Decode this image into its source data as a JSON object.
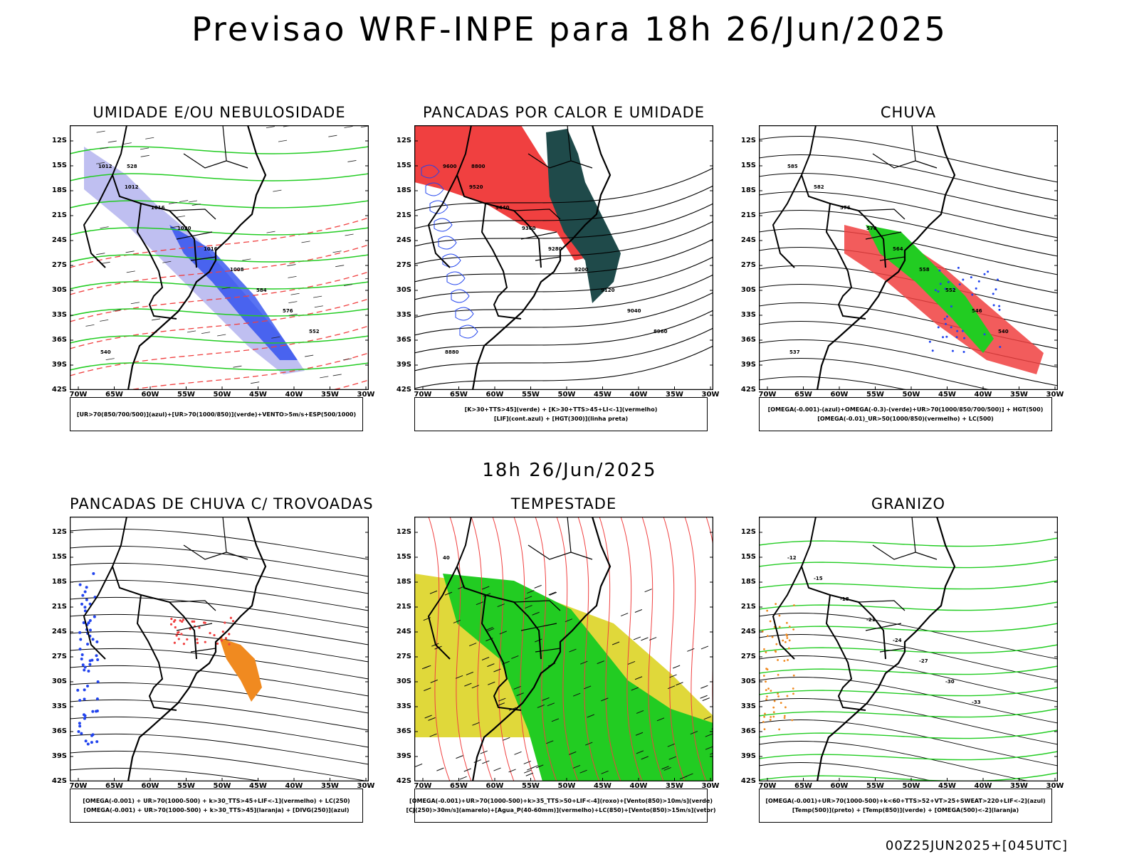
{
  "page": {
    "title": "Previsao WRF-INPE  para 18h 26/Jun/2025",
    "mid_date": "18h 26/Jun/2025",
    "footer": "00Z25JUN2025+[045UTC]"
  },
  "axes": {
    "lat_labels": [
      "12S",
      "15S",
      "18S",
      "21S",
      "24S",
      "27S",
      "30S",
      "33S",
      "36S",
      "39S",
      "42S"
    ],
    "lon_labels": [
      "70W",
      "65W",
      "60W",
      "55W",
      "50W",
      "45W",
      "40W",
      "35W",
      "30W"
    ]
  },
  "colors": {
    "red": "#f04040",
    "green": "#22cc22",
    "blue": "#2244ee",
    "lightblue": "#b8b8f0",
    "darkteal": "#1f4a4a",
    "yellow": "#e0d83a",
    "orange": "#f08a20",
    "black": "#000000"
  },
  "panels": [
    {
      "title": "UMIDADE E/OU NEBULOSIDADE",
      "legend_line1": "[UR>70(850/700/500)](azul)+[UR>70(1000/850)](verde)+VENTO>5m/s+ESP(500/1000)",
      "legend_line2": "",
      "contour_labels": [
        "1012",
        "1012",
        "1016",
        "1020",
        "1016",
        "1008",
        "584",
        "576",
        "552",
        "540",
        "528"
      ]
    },
    {
      "title": "PANCADAS POR CALOR E UMIDADE",
      "legend_line1": "[K>30+TTS>45](verde) + [K>30+TTS>45+LI<-1](vermelho)",
      "legend_line2": "[LIF](cont.azul) + [HGT(300)](linha preta)",
      "contour_labels": [
        "9600",
        "9520",
        "9440",
        "9360",
        "9280",
        "9200",
        "9120",
        "9040",
        "8960",
        "8880",
        "8800"
      ]
    },
    {
      "title": "CHUVA",
      "legend_line1": "[OMEGA(-0.001)-(azul)+OMEGA(-0.3)-(verde)+UR>70(1000/850/700/500)] + HGT(500)",
      "legend_line2": "[OMEGA(-0.01)_UR>50(1000/850)(vermelho) + LC(500)",
      "contour_labels": [
        "585",
        "582",
        "576",
        "570",
        "564",
        "558",
        "552",
        "546",
        "540",
        "537"
      ]
    },
    {
      "title": "PANCADAS DE CHUVA C/ TROVOADAS",
      "legend_line1": "[OMEGA(-0.001) + UR>70(1000-500) + k>30_TTS>45+LIF<-1](vermelho) + LC(250)",
      "legend_line2": "[OMEGA(-0.001) + UR>70(1000-500) + k>30_TTS>45](laranja) + [DIVG(250)](azul)",
      "contour_labels": []
    },
    {
      "title": "TEMPESTADE",
      "legend_line1": "[OMEGA(-0.001)+UR>70(1000-500)+k>35_TTS>50+LIF<-4](roxo)+[Vento(850)>10m/s](verde)",
      "legend_line2": "[CJ(250)>30m/s](amarelo)+[Agua_P(40-60mm)](vermelho)+LC(850)+[Vento(850)>15m/s](vetor)",
      "contour_labels": [
        "40"
      ]
    },
    {
      "title": "GRANIZO",
      "legend_line1": "[OMEGA(-0.001)+UR>70(1000-500)+k<60+TTS>52+VT>25+SWEAT>220+LIF<-2](azul)",
      "legend_line2": "[Temp(500)](preto) + [Temp(850)](verde) + [OMEGA(500)<-2](laranja)",
      "contour_labels": [
        "-12",
        "-15",
        "-18",
        "-21",
        "-24",
        "-27",
        "-30",
        "-33"
      ]
    }
  ]
}
